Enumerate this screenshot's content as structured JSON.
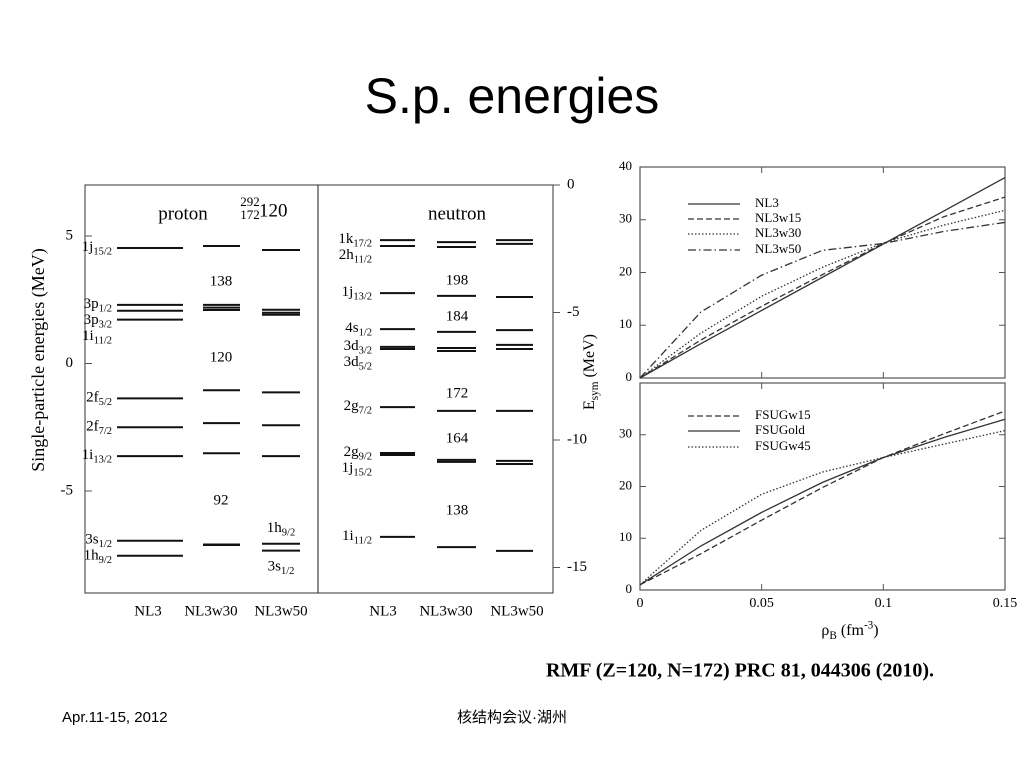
{
  "slide": {
    "title": "S.p. energies",
    "caption": "RMF (Z=120, N=172) PRC 81, 044306 (2010).",
    "footer_left": "Apr.11-15, 2012",
    "footer_center": "核结构会议·湖州"
  },
  "level_diagram": {
    "y_label": "Single-particle energies (MeV)",
    "panels": [
      {
        "title": "proton",
        "ylim": [
          -9,
          7
        ],
        "yticks": [
          -5,
          0,
          5
        ],
        "tick_side": "left",
        "nucleus": [
          {
            "text": "292",
            "sup": true
          },
          {
            "text": "172",
            "sub": true
          },
          {
            "text": "120"
          }
        ],
        "gap_labels": [
          138,
          120,
          92
        ],
        "columns": [
          {
            "name": "NL3",
            "levels": [
              {
                "value": 4.53,
                "label": [
                  {
                    "text": "1j"
                  },
                  {
                    "text": "15/2",
                    "sub": true
                  }
                ]
              },
              {
                "value": 2.3,
                "label": [
                  {
                    "text": "3p"
                  },
                  {
                    "text": "1/2",
                    "sub": true
                  }
                ]
              },
              {
                "value": 2.07,
                "label": [
                  {
                    "text": "3p"
                  },
                  {
                    "text": "3/2",
                    "sub": true
                  }
                ]
              },
              {
                "value": 1.72,
                "label": [
                  {
                    "text": "1i"
                  },
                  {
                    "text": "11/2",
                    "sub": true
                  }
                ]
              },
              {
                "value": -1.37,
                "label": [
                  {
                    "text": "2f"
                  },
                  {
                    "text": "5/2",
                    "sub": true
                  }
                ]
              },
              {
                "value": -2.5,
                "label": [
                  {
                    "text": "2f"
                  },
                  {
                    "text": "7/2",
                    "sub": true
                  }
                ]
              },
              {
                "value": -3.63,
                "label": [
                  {
                    "text": "1i"
                  },
                  {
                    "text": "13/2",
                    "sub": true
                  }
                ]
              },
              {
                "value": -6.95,
                "label": [
                  {
                    "text": "3s"
                  },
                  {
                    "text": "1/2",
                    "sub": true
                  }
                ]
              },
              {
                "value": -7.54,
                "label": [
                  {
                    "text": "1h"
                  },
                  {
                    "text": "9/2",
                    "sub": true
                  }
                ]
              }
            ]
          },
          {
            "name": "NL3w30",
            "levels": [
              {
                "value": 4.61
              },
              {
                "value": 2.3
              },
              {
                "value": 2.19
              },
              {
                "value": 2.1
              },
              {
                "value": -1.05
              },
              {
                "value": -2.34
              },
              {
                "value": -3.52
              },
              {
                "value": -7.1
              },
              {
                "value": -7.12
              }
            ]
          },
          {
            "name": "NL3w50",
            "levels": [
              {
                "value": 4.45
              },
              {
                "value": 2.11
              },
              {
                "value": 1.99
              },
              {
                "value": 1.91
              },
              {
                "value": -1.13
              },
              {
                "value": -2.42
              },
              {
                "value": -3.63
              },
              {
                "value": -7.07,
                "label": [
                  {
                    "text": "1h"
                  },
                  {
                    "text": "9/2",
                    "sub": true
                  }
                ]
              },
              {
                "value": -7.34,
                "label": [
                  {
                    "text": "3s"
                  },
                  {
                    "text": "1/2",
                    "sub": true
                  }
                ]
              }
            ]
          }
        ]
      },
      {
        "title": "neutron",
        "ylim": [
          -16,
          0
        ],
        "yticks": [
          0,
          -5,
          -10,
          -15
        ],
        "tick_side": "right",
        "gap_labels": [
          198,
          184,
          172,
          164,
          138
        ],
        "columns": [
          {
            "name": "NL3",
            "levels": [
              {
                "value": -2.16,
                "label": [
                  {
                    "text": "1k"
                  },
                  {
                    "text": "17/2",
                    "sub": true
                  }
                ]
              },
              {
                "value": -2.39,
                "label": [
                  {
                    "text": "2h"
                  },
                  {
                    "text": "11/2",
                    "sub": true
                  }
                ]
              },
              {
                "value": -4.24,
                "label": [
                  {
                    "text": "1j"
                  },
                  {
                    "text": "13/2",
                    "sub": true
                  }
                ]
              },
              {
                "value": -5.65,
                "label": [
                  {
                    "text": "4s"
                  },
                  {
                    "text": "1/2",
                    "sub": true
                  }
                ]
              },
              {
                "value": -6.35,
                "label": [
                  {
                    "text": "3d"
                  },
                  {
                    "text": "3/2",
                    "sub": true
                  }
                ]
              },
              {
                "value": -6.43,
                "label": [
                  {
                    "text": "3d"
                  },
                  {
                    "text": "5/2",
                    "sub": true
                  }
                ]
              },
              {
                "value": -8.71,
                "label": [
                  {
                    "text": "2g"
                  },
                  {
                    "text": "7/2",
                    "sub": true
                  }
                ]
              },
              {
                "value": -10.51,
                "label": [
                  {
                    "text": "2g"
                  },
                  {
                    "text": "9/2",
                    "sub": true
                  }
                ]
              },
              {
                "value": -10.59,
                "label": [
                  {
                    "text": "1j"
                  },
                  {
                    "text": "15/2",
                    "sub": true
                  }
                ]
              },
              {
                "value": -13.8,
                "label": [
                  {
                    "text": "1i"
                  },
                  {
                    "text": "11/2",
                    "sub": true
                  }
                ]
              }
            ]
          },
          {
            "name": "NL3w30",
            "levels": [
              {
                "value": -2.24
              },
              {
                "value": -2.43
              },
              {
                "value": -4.35
              },
              {
                "value": -5.76
              },
              {
                "value": -6.39
              },
              {
                "value": -6.51
              },
              {
                "value": -8.86
              },
              {
                "value": -10.78
              },
              {
                "value": -10.86
              },
              {
                "value": -14.2
              }
            ]
          },
          {
            "name": "NL3w50",
            "levels": [
              {
                "value": -2.16
              },
              {
                "value": -2.31
              },
              {
                "value": -4.39
              },
              {
                "value": -5.69
              },
              {
                "value": -6.27
              },
              {
                "value": -6.43
              },
              {
                "value": -8.86
              },
              {
                "value": -10.82
              },
              {
                "value": -10.94
              },
              {
                "value": -14.35
              }
            ]
          }
        ]
      }
    ]
  },
  "esym": {
    "y_label": [
      {
        "text": "E"
      },
      {
        "text": "sym",
        "sub": true
      },
      {
        "text": " (MeV)"
      }
    ],
    "x_label": [
      {
        "text": "ρ"
      },
      {
        "text": "B",
        "sub": true
      },
      {
        "text": " (fm"
      },
      {
        "text": "-3",
        "sup": true
      },
      {
        "text": ")"
      }
    ],
    "xlim": [
      0,
      0.15
    ],
    "xticks": [
      0,
      0.05,
      0.1,
      0.15
    ],
    "x": [
      0,
      0.025,
      0.05,
      0.075,
      0.1,
      0.125,
      0.15
    ],
    "panels": [
      {
        "ylim": [
          0,
          40
        ],
        "yticks": [
          0,
          10,
          20,
          30,
          40
        ],
        "series": [
          {
            "name": "NL3",
            "dash": "solid",
            "values": [
              0,
              6.5,
              12.8,
              19.1,
              25.4,
              31.7,
              38
            ]
          },
          {
            "name": "NL3w15",
            "dash": "dashed",
            "values": [
              0,
              7.2,
              13.6,
              19.6,
              25.5,
              30.6,
              34.3
            ]
          },
          {
            "name": "NL3w30",
            "dash": "dotted",
            "values": [
              0,
              8.5,
              15.5,
              21,
              25.6,
              29,
              31.8
            ]
          },
          {
            "name": "NL3w50",
            "dash": "dashdot",
            "values": [
              0,
              12.5,
              19.5,
              24.2,
              25.5,
              27.8,
              29.5
            ]
          }
        ]
      },
      {
        "ylim": [
          0,
          40
        ],
        "yticks": [
          0,
          10,
          20,
          30
        ],
        "series": [
          {
            "name": "FSUGw15",
            "dash": "dashed",
            "values": [
              1,
              7,
              13.5,
              19.8,
              25.6,
              30.2,
              34.6
            ]
          },
          {
            "name": "FSUGold",
            "dash": "solid",
            "values": [
              1,
              8.5,
              15,
              20.8,
              25.6,
              29.5,
              33
            ]
          },
          {
            "name": "FSUGw45",
            "dash": "dotted",
            "values": [
              1,
              11.5,
              18.5,
              22.8,
              25.6,
              28.2,
              30.8
            ]
          }
        ]
      }
    ]
  }
}
